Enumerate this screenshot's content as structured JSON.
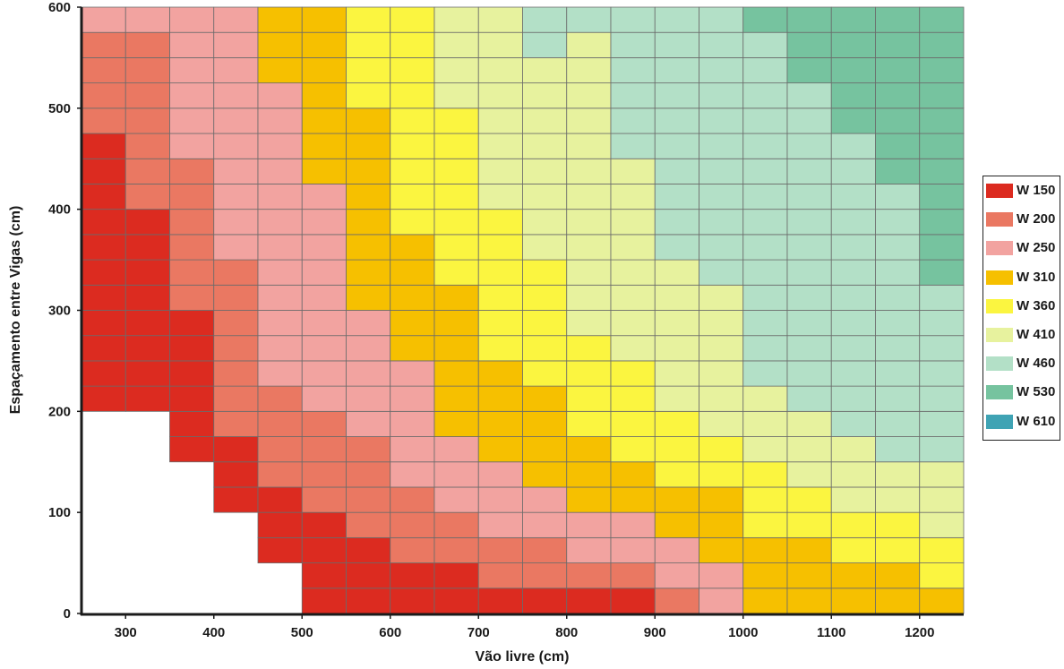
{
  "chart_data": {
    "type": "heatmap",
    "title": "",
    "xlabel": "Vão livre (cm)",
    "ylabel": "Espaçamento entre Vigas (cm)",
    "x_ticks": [
      "300",
      "400",
      "500",
      "600",
      "700",
      "800",
      "900",
      "1000",
      "1100",
      "1200"
    ],
    "y_ticks": [
      "0",
      "100",
      "200",
      "300",
      "400",
      "500",
      "600"
    ],
    "x_range": [
      250,
      1250
    ],
    "y_range": [
      0,
      600
    ],
    "column_width": 50,
    "row_height": 25,
    "x_start": 250,
    "x_end": 1250,
    "grid": true,
    "legend_position": "right",
    "legend": [
      {
        "label": "W 150",
        "color": "#dc2b20"
      },
      {
        "label": "W 200",
        "color": "#ea7862"
      },
      {
        "label": "W 250",
        "color": "#f2a3a0"
      },
      {
        "label": "W 310",
        "color": "#f6c000"
      },
      {
        "label": "W 360",
        "color": "#fbf540"
      },
      {
        "label": "W 410",
        "color": "#e7f29e"
      },
      {
        "label": "W 460",
        "color": "#b3e0c7"
      },
      {
        "label": "W 530",
        "color": "#76c39f"
      },
      {
        "label": "W 610",
        "color": "#3fa3b4"
      }
    ],
    "columns": [
      {
        "x_from": 250,
        "thresholds": [
          200,
          475,
          575
        ]
      },
      {
        "x_from": 300,
        "thresholds": [
          200,
          400,
          575
        ]
      },
      {
        "x_from": 350,
        "thresholds": [
          150,
          300,
          450,
          650
        ]
      },
      {
        "x_from": 400,
        "thresholds": [
          100,
          175,
          350,
          600
        ]
      },
      {
        "x_from": 450,
        "thresholds": [
          50,
          125,
          225,
          525,
          600
        ]
      },
      {
        "x_from": 500,
        "thresholds": [
          0,
          100,
          200,
          425,
          600
        ]
      },
      {
        "x_from": 550,
        "thresholds": [
          0,
          75,
          175,
          300,
          500,
          600
        ]
      },
      {
        "x_from": 600,
        "thresholds": [
          0,
          50,
          125,
          250,
          375,
          600
        ]
      },
      {
        "x_from": 650,
        "thresholds": [
          0,
          50,
          100,
          175,
          325,
          500
        ]
      },
      {
        "x_from": 700,
        "thresholds": [
          0,
          25,
          75,
          150,
          250,
          400,
          600
        ]
      },
      {
        "x_from": 750,
        "thresholds": [
          0,
          25,
          75,
          125,
          225,
          350,
          550
        ]
      },
      {
        "x_from": 800,
        "thresholds": [
          0,
          25,
          50,
          100,
          175,
          275,
          575,
          650
        ]
      },
      {
        "x_from": 850,
        "thresholds": [
          0,
          25,
          50,
          100,
          150,
          250,
          450,
          650
        ]
      },
      {
        "x_from": 900,
        "thresholds": [
          0,
          0,
          25,
          75,
          125,
          200,
          350,
          650
        ]
      },
      {
        "x_from": 950,
        "thresholds": [
          0,
          0,
          0,
          50,
          125,
          175,
          325,
          650
        ]
      },
      {
        "x_from": 1000,
        "thresholds": [
          0,
          0,
          0,
          0,
          75,
          150,
          225,
          575
        ]
      },
      {
        "x_from": 1050,
        "thresholds": [
          0,
          0,
          0,
          0,
          75,
          125,
          200,
          525
        ]
      },
      {
        "x_from": 1100,
        "thresholds": [
          0,
          0,
          0,
          0,
          50,
          100,
          175,
          475,
          600
        ]
      },
      {
        "x_from": 1150,
        "thresholds": [
          0,
          0,
          0,
          0,
          50,
          100,
          150,
          425,
          600
        ]
      },
      {
        "x_from": 1200,
        "thresholds": [
          0,
          0,
          0,
          0,
          25,
          75,
          150,
          325,
          600
        ]
      }
    ]
  }
}
